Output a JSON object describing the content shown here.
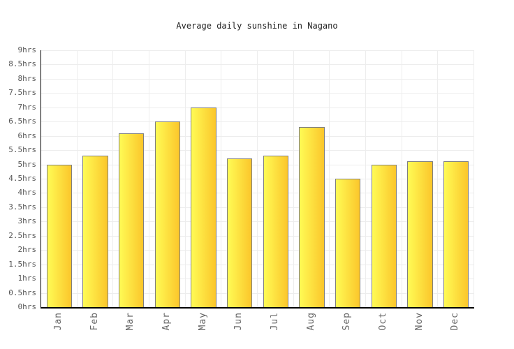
{
  "chart_data": {
    "type": "bar",
    "title": "Average daily sunshine in Nagano",
    "categories": [
      "Jan",
      "Feb",
      "Mar",
      "Apr",
      "May",
      "Jun",
      "Jul",
      "Aug",
      "Sep",
      "Oct",
      "Nov",
      "Dec"
    ],
    "values": [
      5.0,
      5.3,
      6.1,
      6.5,
      7.0,
      5.2,
      5.3,
      6.3,
      4.5,
      5.0,
      5.1,
      5.1
    ],
    "xlabel": "",
    "ylabel": "",
    "ylim": [
      0,
      9
    ],
    "ytick_step": 0.5,
    "ytick_labels": [
      "0hrs",
      "0.5hrs",
      "1hrs",
      "1.5hrs",
      "2hrs",
      "2.5hrs",
      "3hrs",
      "3.5hrs",
      "4hrs",
      "4.5hrs",
      "5hrs",
      "5.5hrs",
      "6hrs",
      "6.5hrs",
      "7hrs",
      "7.5hrs",
      "8hrs",
      "8.5hrs",
      "9hrs"
    ],
    "grid": "horizontal and vertical, light gray",
    "legend": "none",
    "bar_width_fraction": 0.7,
    "colors": {
      "background": "#FFFFFF",
      "bar_gradient_left": "#FFFB55",
      "bar_gradient_right": "#FBC62B",
      "bar_border": "#7F7F7F",
      "gridline": "#EDEDED",
      "axis": "#000000",
      "title_text": "#222222",
      "ytick_text": "#555555",
      "xtick_text": "#666666"
    }
  }
}
